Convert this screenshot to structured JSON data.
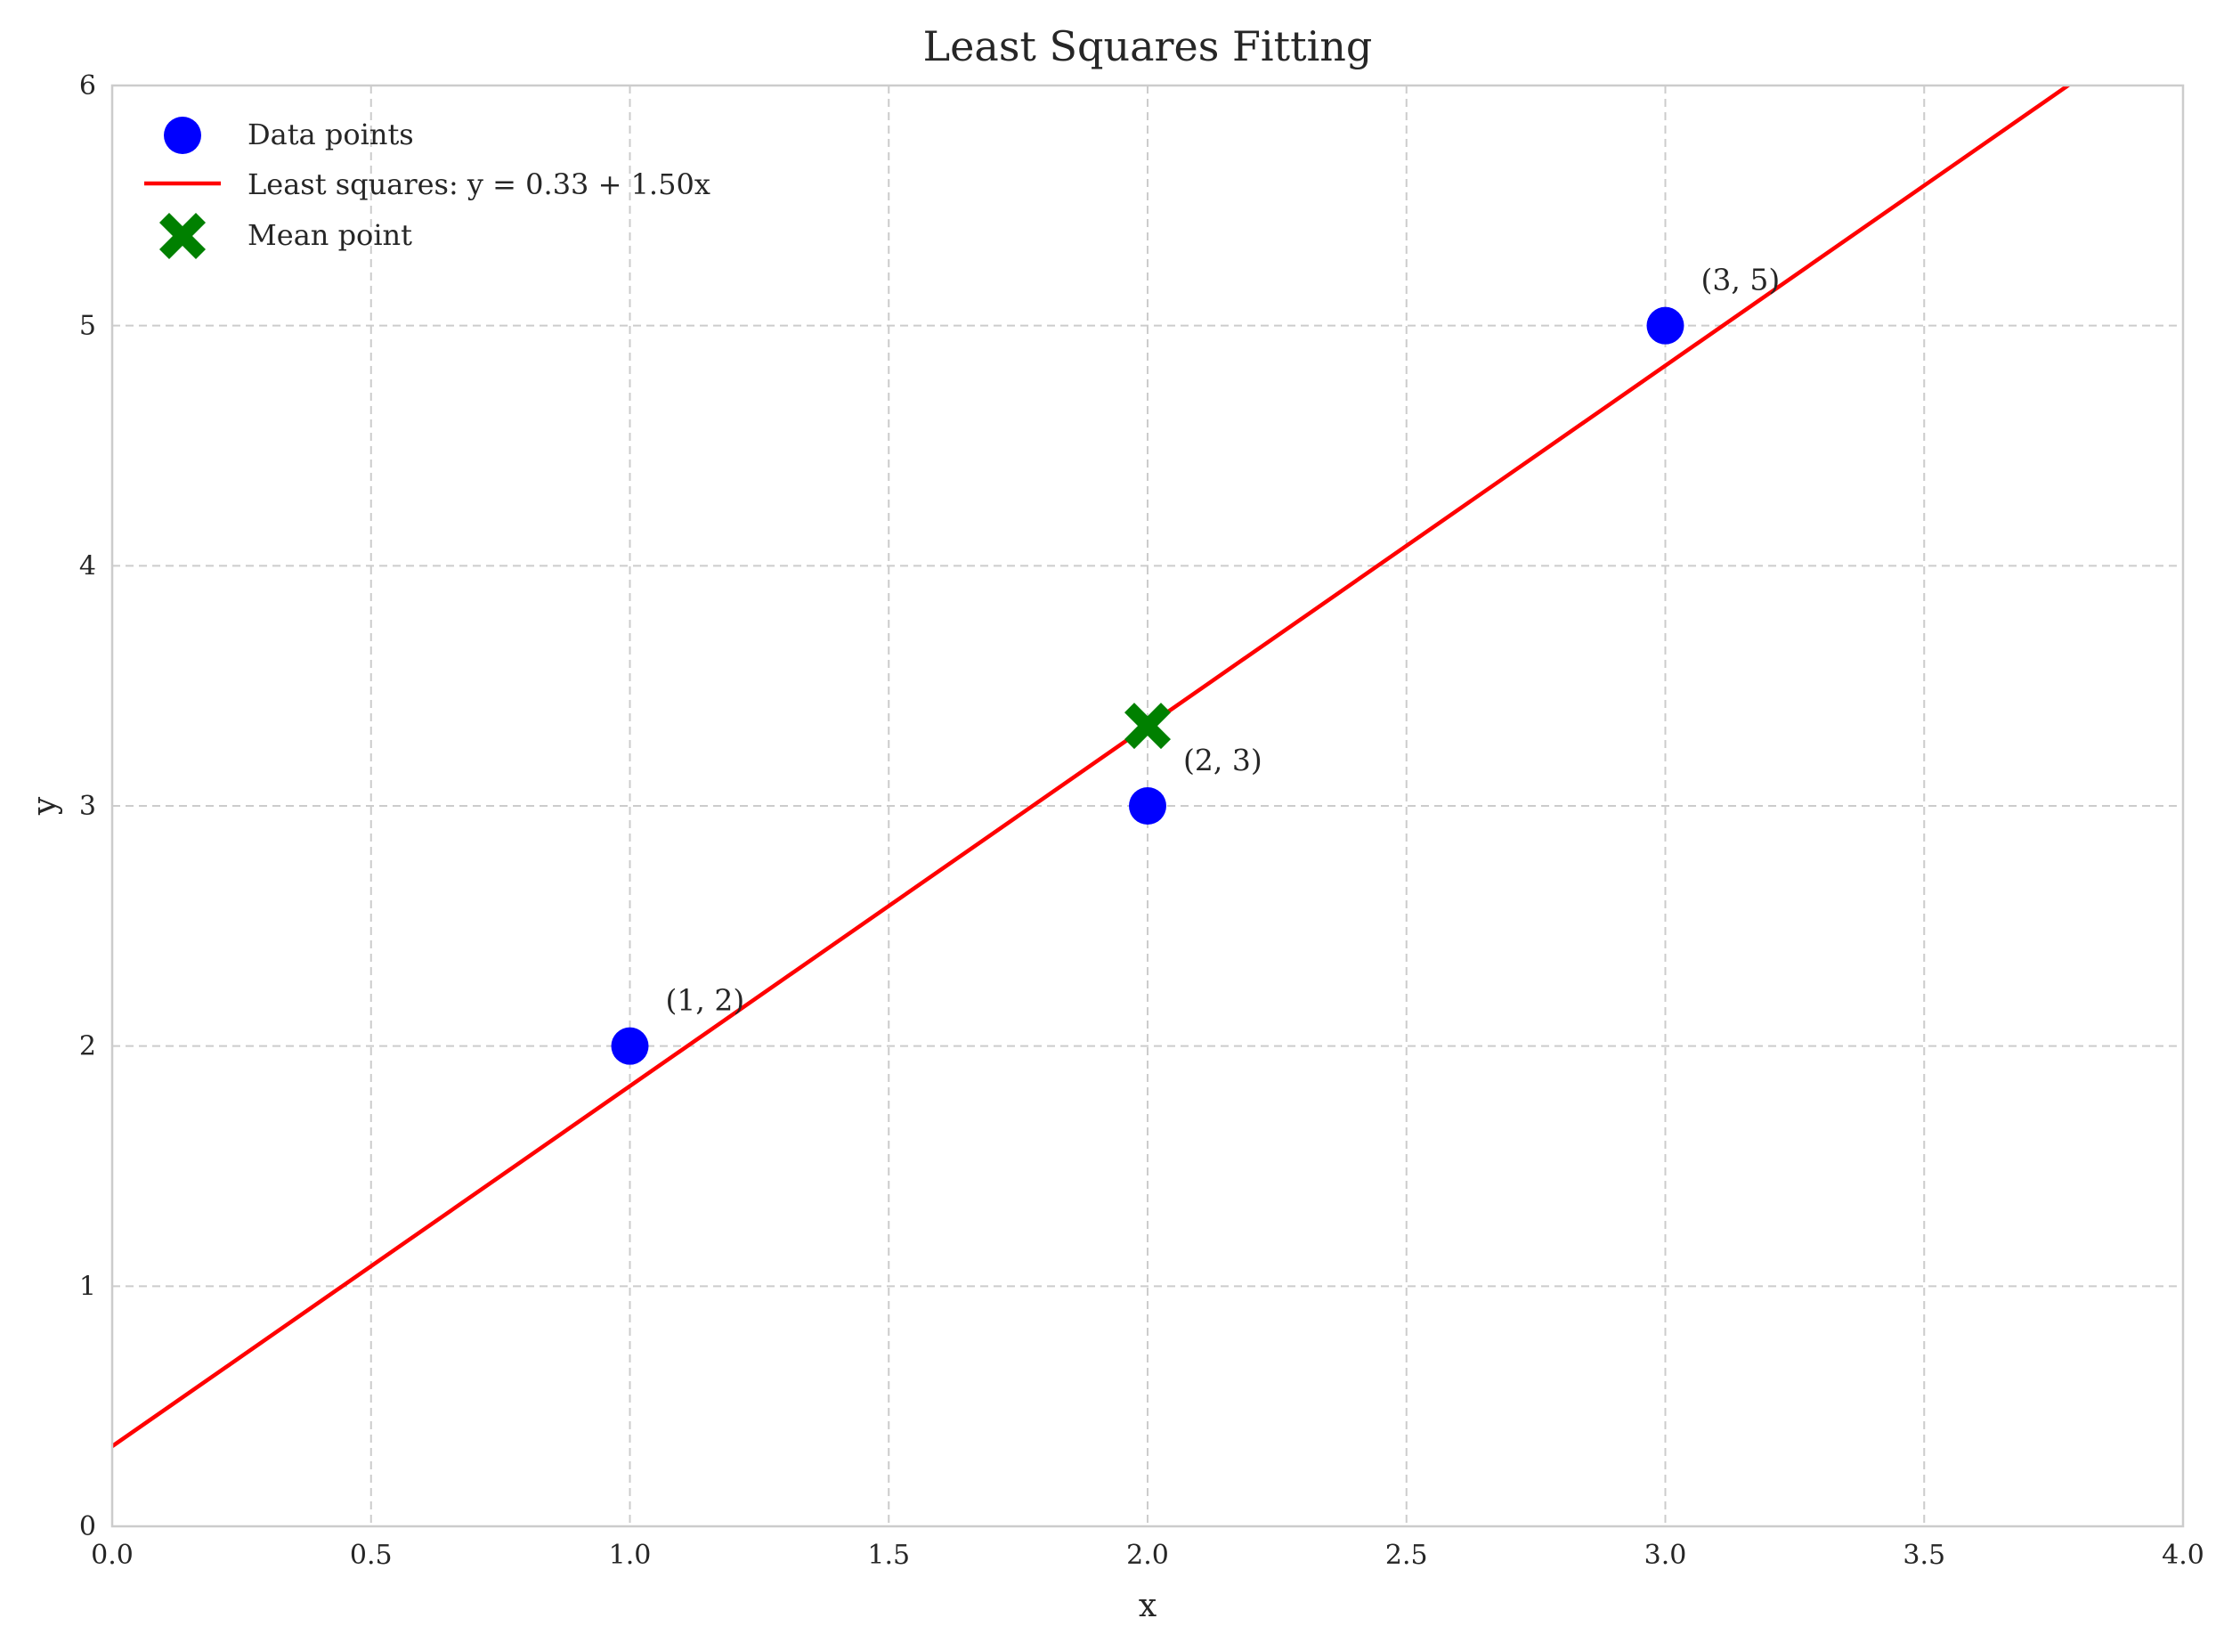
{
  "chart_data": {
    "type": "scatter",
    "title": "Least Squares Fitting",
    "xlabel": "x",
    "ylabel": "y",
    "xlim": [
      0,
      4
    ],
    "ylim": [
      0,
      6
    ],
    "xticks": [
      "0.0",
      "0.5",
      "1.0",
      "1.5",
      "2.0",
      "2.5",
      "3.0",
      "3.5",
      "4.0"
    ],
    "yticks": [
      "0",
      "1",
      "2",
      "3",
      "4",
      "5",
      "6"
    ],
    "grid": true,
    "legend_position": "top-left",
    "series": [
      {
        "name": "Data points",
        "kind": "scatter",
        "marker": "circle",
        "color": "#0000ff",
        "points": [
          {
            "x": 1,
            "y": 2,
            "label": "(1, 2)"
          },
          {
            "x": 2,
            "y": 3,
            "label": "(2, 3)"
          },
          {
            "x": 3,
            "y": 5,
            "label": "(3, 5)"
          }
        ]
      },
      {
        "name": "Least squares: y = 0.33 + 1.50x",
        "kind": "line",
        "color": "#ff0000",
        "intercept": 0.3333,
        "slope": 1.5,
        "x_range": [
          0,
          4
        ]
      },
      {
        "name": "Mean point",
        "kind": "scatter",
        "marker": "x-filled",
        "color": "#008000",
        "points": [
          {
            "x": 2,
            "y": 3.3333
          }
        ]
      }
    ]
  }
}
